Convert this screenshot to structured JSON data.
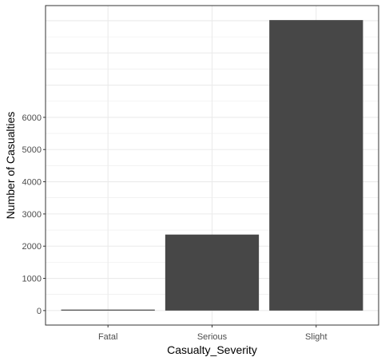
{
  "chart_data": {
    "type": "bar",
    "xlabel": "Casualty_Severity",
    "ylabel": "Number of Casualties",
    "categories": [
      "Fatal",
      "Serious",
      "Slight"
    ],
    "values": [
      30,
      2360,
      9020
    ],
    "yticks": [
      0,
      1000,
      2000,
      3000,
      4000,
      5000,
      6000
    ],
    "ylim": [
      -450,
      9470
    ],
    "grid": true,
    "bar_color": "#474747",
    "grid_color": "#ebebeb",
    "panel_border_color": "#333333"
  }
}
